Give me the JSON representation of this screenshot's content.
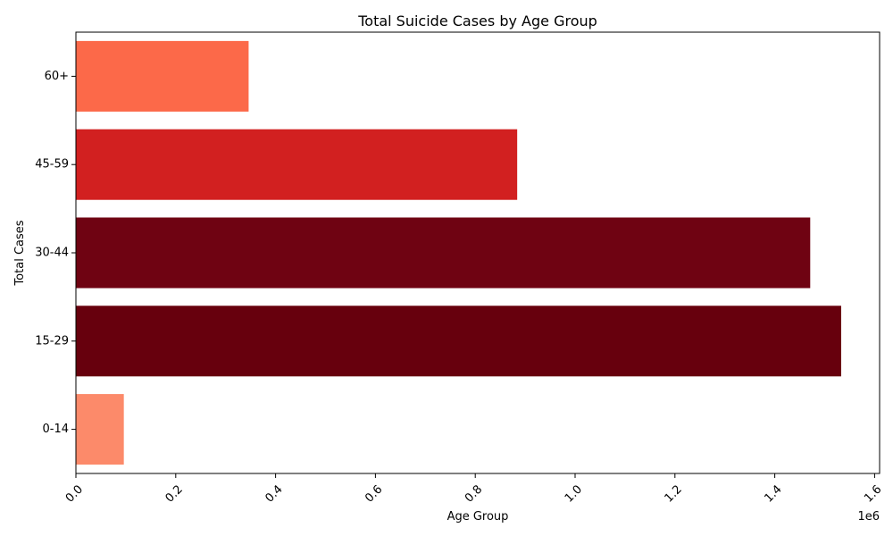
{
  "chart_data": {
    "type": "bar",
    "orientation": "horizontal",
    "title": "Total Suicide Cases by Age Group",
    "xlabel": "Age Group",
    "ylabel": "Total Cases",
    "categories": [
      "0-14",
      "15-29",
      "30-44",
      "45-59",
      "60+"
    ],
    "values": [
      96000,
      1533000,
      1471000,
      884000,
      346000
    ],
    "colors": [
      "#fc8a6a",
      "#67000d",
      "#6f0312",
      "#d22020",
      "#fc6949"
    ],
    "xlim": [
      0,
      1610000
    ],
    "x_ticks": [
      "0.0",
      "0.2",
      "0.4",
      "0.6",
      "0.8",
      "1.0",
      "1.2",
      "1.4",
      "1.6"
    ],
    "x_tick_values": [
      0,
      200000,
      400000,
      600000,
      800000,
      1000000,
      1200000,
      1400000,
      1600000
    ],
    "x_offset_label": "1e6",
    "grid": false,
    "legend": "none"
  }
}
